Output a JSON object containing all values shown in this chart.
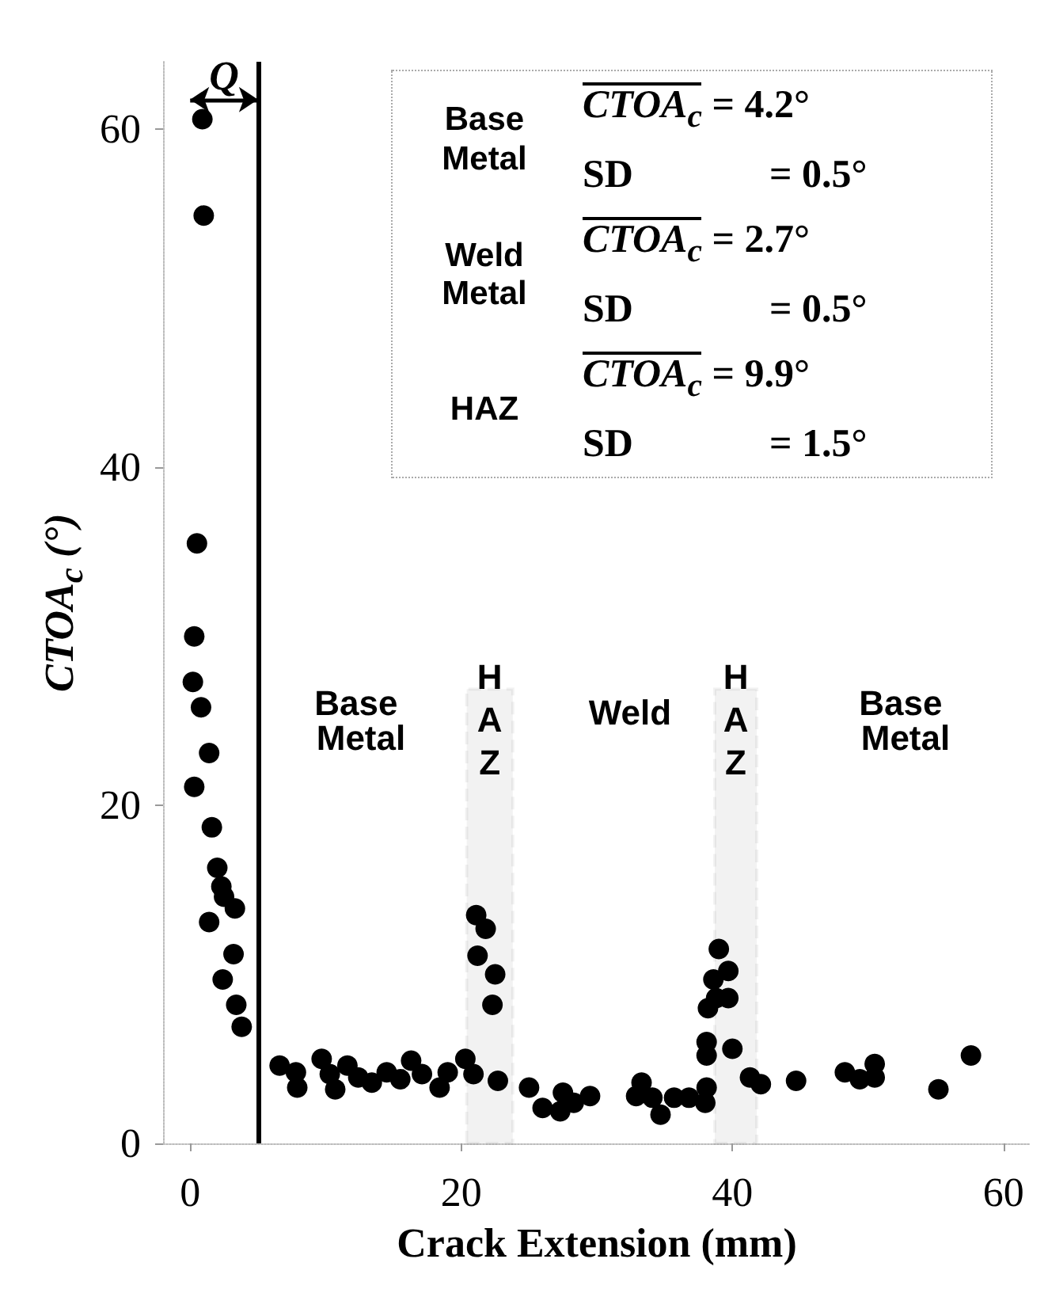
{
  "chart_data": {
    "type": "scatter",
    "xlabel": "Crack Extension (mm)",
    "ylabel": "CTOA$_{c}$ (°)",
    "xlim": [
      -2,
      62
    ],
    "xticks": [
      0,
      20,
      40,
      60
    ],
    "ylim": [
      0,
      64
    ],
    "yticks": [
      0,
      20,
      40,
      60
    ],
    "grid": false,
    "marker": "circle",
    "x": [
      0.9,
      1.0,
      0.5,
      0.3,
      0.2,
      0.8,
      1.4,
      0.3,
      1.6,
      2.0,
      2.3,
      2.5,
      3.3,
      1.4,
      3.2,
      2.4,
      3.4,
      3.8,
      6.6,
      7.8,
      7.9,
      9.7,
      10.3,
      10.7,
      11.6,
      12.4,
      13.4,
      14.5,
      15.5,
      16.3,
      17.1,
      18.4,
      19.0,
      20.3,
      20.9,
      21.1,
      21.8,
      21.2,
      22.5,
      22.3,
      22.7,
      25.0,
      26.0,
      27.5,
      27.3,
      28.3,
      29.5,
      32.9,
      33.3,
      34.1,
      34.7,
      35.7,
      36.8,
      38.0,
      38.1,
      38.1,
      38.1,
      38.2,
      38.8,
      39.7,
      38.6,
      39.7,
      39.0,
      40.0,
      41.3,
      42.1,
      44.7,
      48.3,
      49.4,
      50.5,
      50.5,
      55.2,
      57.6
    ],
    "series": [
      {
        "color": "#000000",
        "values": [
          60.6,
          54.9,
          35.5,
          30.0,
          27.3,
          25.8,
          23.1,
          21.1,
          18.7,
          16.3,
          15.2,
          14.6,
          13.9,
          13.1,
          11.2,
          9.7,
          8.2,
          6.9,
          4.6,
          4.2,
          3.3,
          5.0,
          4.1,
          3.2,
          4.6,
          3.9,
          3.6,
          4.2,
          3.8,
          4.9,
          4.1,
          3.3,
          4.2,
          5.0,
          4.1,
          13.5,
          12.7,
          11.1,
          10.0,
          8.2,
          3.7,
          3.3,
          2.1,
          3.0,
          1.9,
          2.4,
          2.8,
          2.8,
          3.6,
          2.7,
          1.7,
          2.7,
          2.7,
          2.4,
          3.3,
          6.0,
          5.2,
          8.0,
          8.6,
          8.6,
          9.7,
          10.2,
          11.5,
          5.6,
          3.9,
          3.5,
          3.7,
          4.2,
          3.8,
          4.7,
          3.9,
          3.2,
          5.2
        ]
      }
    ],
    "ref_lines": [
      {
        "axis": "x",
        "value": 5,
        "label": "Q",
        "color": "#000000",
        "line_style": "solid"
      }
    ],
    "bands": [
      {
        "axis": "x",
        "from": 20.4,
        "to": 23.8,
        "label": "HAZ",
        "color": "#000000"
      },
      {
        "axis": "x",
        "from": 38.7,
        "to": 41.8,
        "label": "HAZ",
        "color": "#000000"
      }
    ],
    "annotations": [
      "Base Metal",
      "Weld",
      "Base Metal",
      "Base Metal",
      "CTOA$_{c}$ = 4.2°",
      "SD = 0.5°",
      "Weld Metal",
      "CTOA$_{c}$ = 2.7°",
      "SD = 0.5°",
      "HAZ",
      "CTOA$_{c}$ = 9.9°",
      "SD = 1.5°"
    ]
  }
}
